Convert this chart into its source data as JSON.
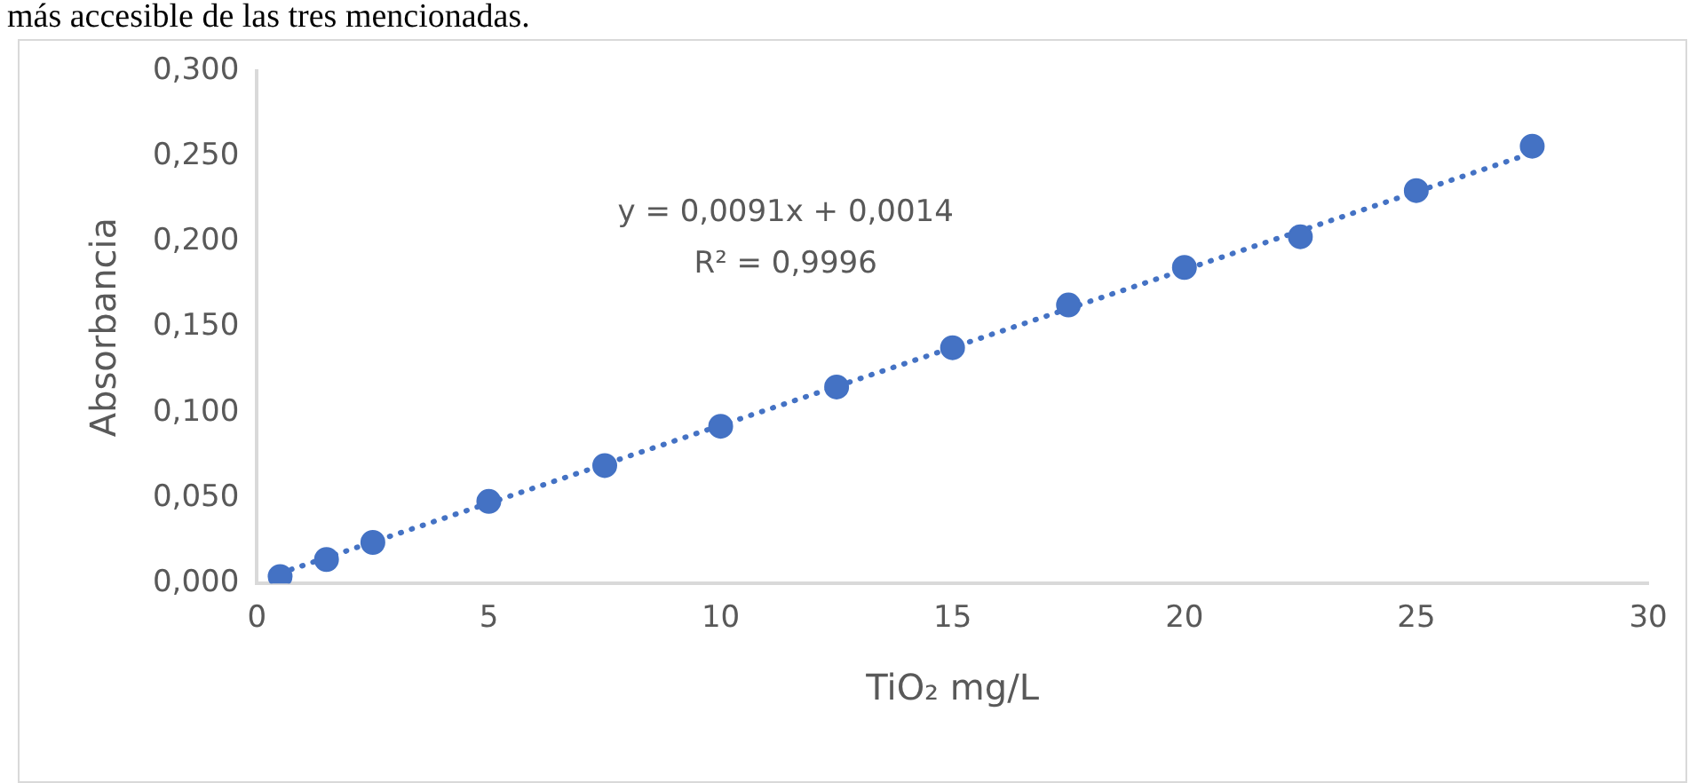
{
  "chart_data": {
    "type": "scatter",
    "xlabel": "TiO₂ mg/L",
    "ylabel": "Absorbancia",
    "annotations": [
      "más accesible de las tres mencionadas.",
      "y = 0,0091x + 0,0014",
      "R² = 0,9996"
    ],
    "series": [
      {
        "marker": "circle",
        "color": "#4472c4",
        "x": [
          0.5,
          1.5,
          2.5,
          5,
          7.5,
          10,
          12.5,
          15,
          17.5,
          20,
          22.5,
          25,
          27.5
        ],
        "values": [
          0.004,
          0.014,
          0.024,
          0.048,
          0.069,
          0.092,
          0.115,
          0.138,
          0.163,
          0.185,
          0.203,
          0.23,
          0.256
        ]
      },
      {
        "type": "line",
        "marker": "none",
        "color": "#4472c4",
        "x": [
          0.5,
          27.5
        ],
        "values": [
          0.006,
          0.252
        ]
      }
    ],
    "line_style": "dotted",
    "grid": false,
    "legend": false,
    "xlim": [
      0,
      30
    ],
    "xticks": [
      0,
      5,
      10,
      15,
      20,
      25,
      30
    ],
    "ylim": [
      0,
      0.3
    ],
    "yticks": [
      {
        "value": 0,
        "label": "0,000"
      },
      {
        "value": 0.05,
        "label": "0,050"
      },
      {
        "value": 0.1,
        "label": "0,100"
      },
      {
        "value": 0.15,
        "label": "0,150"
      },
      {
        "value": 0.2,
        "label": "0,200"
      },
      {
        "value": 0.25,
        "label": "0,250"
      },
      {
        "value": 0.3,
        "label": "0,300"
      }
    ]
  }
}
